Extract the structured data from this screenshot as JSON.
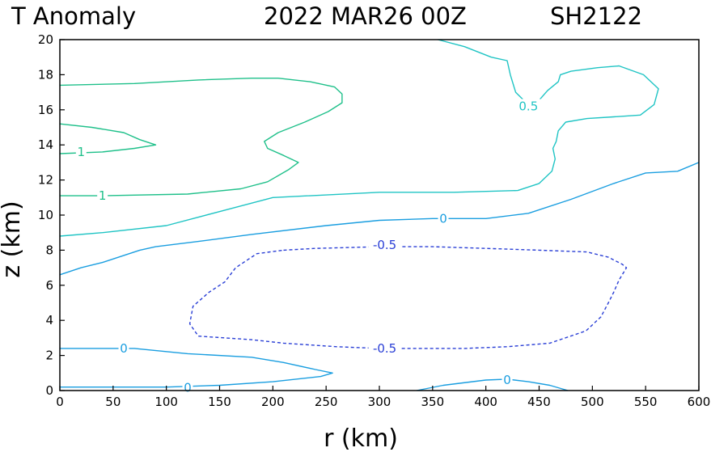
{
  "chart_data": {
    "type": "contour",
    "title_left": "T Anomaly",
    "title_center": "2022 MAR26 00Z",
    "title_right": "SH2122",
    "xlabel": "r (km)",
    "ylabel": "z (km)",
    "xlim": [
      0,
      600
    ],
    "ylim": [
      0,
      20
    ],
    "xticks": [
      0,
      50,
      100,
      150,
      200,
      250,
      300,
      350,
      400,
      450,
      500,
      550,
      600
    ],
    "yticks": [
      0,
      2,
      4,
      6,
      8,
      10,
      12,
      14,
      16,
      18,
      20
    ],
    "colors": {
      "level_1": "#1fc08a",
      "level_0_5": "#1fc4c4",
      "level_0": "#1a9ee0",
      "level_neg_0_5": "#2a3fd6",
      "axis": "#000000"
    },
    "contours": [
      {
        "id": "c1-upper",
        "level": 1,
        "label": "1",
        "color_key": "level_1",
        "dashed": false,
        "points": [
          [
            0,
            17.4
          ],
          [
            70,
            17.5
          ],
          [
            130,
            17.7
          ],
          [
            180,
            17.8
          ],
          [
            205,
            17.8
          ],
          [
            235,
            17.6
          ],
          [
            258,
            17.3
          ],
          [
            265,
            16.9
          ],
          [
            265,
            16.4
          ],
          [
            252,
            15.9
          ],
          [
            230,
            15.3
          ],
          [
            205,
            14.7
          ],
          [
            192,
            14.2
          ],
          [
            195,
            13.8
          ],
          [
            210,
            13.4
          ],
          [
            224,
            13.0
          ],
          [
            215,
            12.6
          ],
          [
            195,
            11.9
          ],
          [
            170,
            11.5
          ],
          [
            120,
            11.2
          ],
          [
            40,
            11.1
          ],
          [
            0,
            11.1
          ]
        ],
        "label_pos": [
          40,
          11.1
        ]
      },
      {
        "id": "c1-lobe",
        "level": 1,
        "label": "1",
        "color_key": "level_1",
        "dashed": false,
        "points": [
          [
            0,
            15.2
          ],
          [
            30,
            15.0
          ],
          [
            60,
            14.7
          ],
          [
            75,
            14.3
          ],
          [
            90,
            14.0
          ],
          [
            70,
            13.8
          ],
          [
            40,
            13.6
          ],
          [
            0,
            13.5
          ]
        ],
        "label_pos": [
          20,
          13.6
        ]
      },
      {
        "id": "c05-upper",
        "level": 0.5,
        "label": "0.5",
        "color_key": "level_0_5",
        "dashed": false,
        "points": [
          [
            355,
            20
          ],
          [
            380,
            19.6
          ],
          [
            405,
            19.0
          ],
          [
            420,
            18.8
          ],
          [
            423,
            18.0
          ],
          [
            428,
            17.0
          ],
          [
            438,
            16.4
          ],
          [
            445,
            16.2
          ],
          [
            458,
            17.1
          ],
          [
            468,
            17.6
          ],
          [
            470,
            18.0
          ],
          [
            480,
            18.2
          ],
          [
            505,
            18.4
          ],
          [
            525,
            18.5
          ],
          [
            548,
            18.0
          ],
          [
            562,
            17.2
          ],
          [
            558,
            16.3
          ],
          [
            545,
            15.7
          ],
          [
            520,
            15.6
          ],
          [
            495,
            15.5
          ],
          [
            475,
            15.3
          ],
          [
            468,
            14.8
          ],
          [
            466,
            14.2
          ],
          [
            463,
            13.8
          ],
          [
            465,
            13.2
          ],
          [
            462,
            12.5
          ],
          [
            450,
            11.8
          ],
          [
            430,
            11.4
          ],
          [
            370,
            11.3
          ],
          [
            300,
            11.3
          ],
          [
            200,
            11.0
          ],
          [
            100,
            9.4
          ],
          [
            40,
            9.0
          ],
          [
            0,
            8.8
          ]
        ],
        "label_pos": [
          440,
          16.2
        ]
      },
      {
        "id": "c0-main",
        "level": 0,
        "label": "0",
        "color_key": "level_0",
        "dashed": false,
        "points": [
          [
            0,
            6.6
          ],
          [
            20,
            7.0
          ],
          [
            40,
            7.3
          ],
          [
            60,
            7.7
          ],
          [
            75,
            8.0
          ],
          [
            90,
            8.2
          ],
          [
            130,
            8.5
          ],
          [
            180,
            8.9
          ],
          [
            250,
            9.4
          ],
          [
            300,
            9.7
          ],
          [
            350,
            9.8
          ],
          [
            400,
            9.8
          ],
          [
            440,
            10.1
          ],
          [
            480,
            10.9
          ],
          [
            520,
            11.8
          ],
          [
            550,
            12.4
          ],
          [
            580,
            12.5
          ],
          [
            600,
            13.0
          ]
        ],
        "label_pos": [
          360,
          9.8
        ]
      },
      {
        "id": "c0-low",
        "level": 0,
        "label": "0",
        "color_key": "level_0",
        "dashed": false,
        "points": [
          [
            0,
            2.4
          ],
          [
            40,
            2.4
          ],
          [
            70,
            2.4
          ],
          [
            120,
            2.1
          ],
          [
            180,
            1.9
          ],
          [
            210,
            1.6
          ],
          [
            240,
            1.2
          ],
          [
            256,
            1.0
          ],
          [
            245,
            0.8
          ],
          [
            200,
            0.5
          ],
          [
            150,
            0.3
          ],
          [
            100,
            0.2
          ],
          [
            0,
            0.2
          ]
        ],
        "label_pos": [
          60,
          2.4
        ],
        "label_pos_2": [
          120,
          0.15
        ]
      },
      {
        "id": "c0-bottom",
        "level": 0,
        "label": "0",
        "color_key": "level_0",
        "dashed": false,
        "points": [
          [
            335,
            0
          ],
          [
            360,
            0.3
          ],
          [
            400,
            0.6
          ],
          [
            420,
            0.65
          ],
          [
            440,
            0.5
          ],
          [
            460,
            0.3
          ],
          [
            477,
            0
          ]
        ],
        "label_pos": [
          420,
          0.6
        ]
      },
      {
        "id": "cneg05",
        "level": -0.5,
        "label": "-0.5",
        "color_key": "level_neg_0_5",
        "dashed": true,
        "points": [
          [
            210,
            8.0
          ],
          [
            240,
            8.1
          ],
          [
            300,
            8.2
          ],
          [
            350,
            8.2
          ],
          [
            400,
            8.1
          ],
          [
            450,
            8.0
          ],
          [
            495,
            7.9
          ],
          [
            515,
            7.6
          ],
          [
            528,
            7.2
          ],
          [
            532,
            7.0
          ],
          [
            525,
            6.3
          ],
          [
            520,
            5.6
          ],
          [
            515,
            5.0
          ],
          [
            508,
            4.2
          ],
          [
            494,
            3.4
          ],
          [
            460,
            2.7
          ],
          [
            420,
            2.5
          ],
          [
            380,
            2.4
          ],
          [
            340,
            2.4
          ],
          [
            300,
            2.4
          ],
          [
            260,
            2.5
          ],
          [
            210,
            2.7
          ],
          [
            180,
            2.9
          ],
          [
            130,
            3.1
          ],
          [
            122,
            3.8
          ],
          [
            125,
            4.8
          ],
          [
            140,
            5.6
          ],
          [
            155,
            6.2
          ],
          [
            165,
            7.0
          ],
          [
            185,
            7.8
          ],
          [
            210,
            8.0
          ]
        ],
        "label_pos": [
          305,
          8.3
        ],
        "label_pos_2": [
          305,
          2.4
        ]
      }
    ]
  }
}
